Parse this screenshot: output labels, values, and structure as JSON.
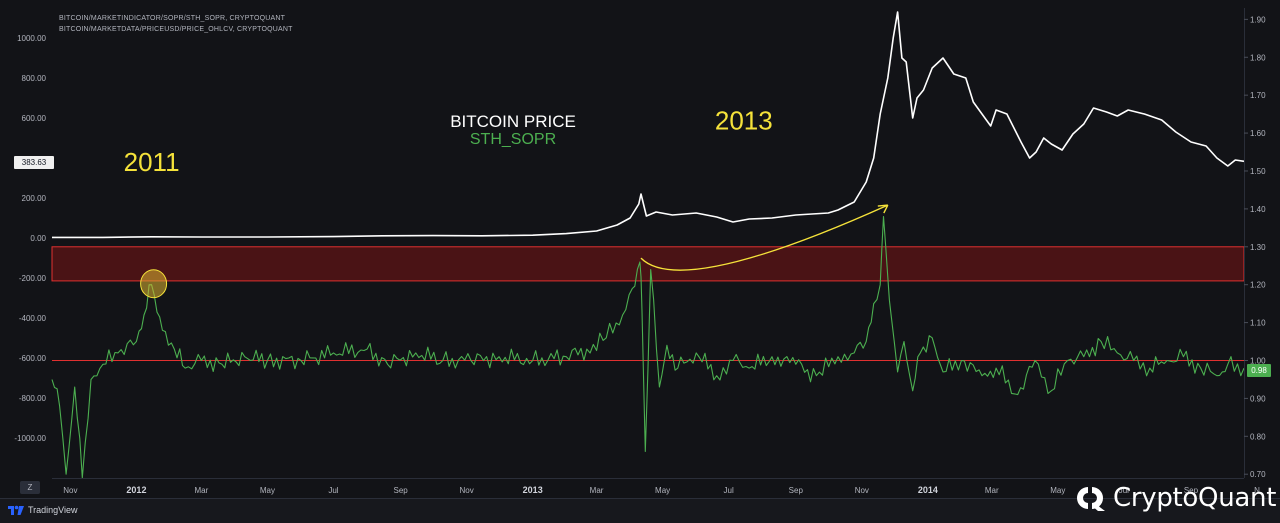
{
  "sources": {
    "line1": "BITCOIN/MARKETINDICATOR/SOPR/STH_SOPR, CRYPTOQUANT",
    "line2": "BITCOIN/MARKETDATA/PRICEUSD/PRICE_OHLCV, CRYPTOQUANT"
  },
  "badges": {
    "price_last": "383.63",
    "sopr_last": "0.98",
    "timezone": "Z"
  },
  "branding": {
    "tradingview": "TradingView",
    "cryptoquant": "CryptoQuant"
  },
  "colors": {
    "background": "#121317",
    "price_line": "#ffffff",
    "sopr_line": "#4caf50",
    "band_fill": "#4a1315",
    "band_edge": "#e03030",
    "level_line": "#e03030",
    "annotation": "#f5e23a",
    "axis_text": "#b2b5be"
  },
  "chart_data": {
    "type": "line",
    "legend": {
      "position": "center",
      "items": [
        "BITCOIN PRICE",
        "STH_SOPR"
      ]
    },
    "left_axis": {
      "ticks": [
        1000,
        800,
        600,
        400,
        200,
        0,
        -200,
        -400,
        -600,
        -800,
        -1000
      ],
      "tick_labels": [
        "1000.00",
        "800.00",
        "600.00",
        "",
        "200.00",
        "0.00",
        "-200.00",
        "-400.00",
        "-600.00",
        "-800.00",
        "-1000.00"
      ],
      "range": [
        -1200,
        1150
      ]
    },
    "right_axis": {
      "ticks": [
        1.9,
        1.8,
        1.7,
        1.6,
        1.5,
        1.4,
        1.3,
        1.2,
        1.1,
        1.0,
        0.9,
        0.8,
        0.7
      ],
      "tick_labels": [
        "1.90",
        "1.80",
        "1.70",
        "1.60",
        "1.50",
        "1.40",
        "1.30",
        "1.20",
        "1.10",
        "1.00",
        "0.90",
        "0.80",
        "0.70"
      ],
      "range": [
        0.69,
        1.93
      ]
    },
    "x_axis": {
      "tick_labels": [
        "Nov",
        "2012",
        "Mar",
        "May",
        "Jul",
        "Sep",
        "Nov",
        "2013",
        "Mar",
        "May",
        "Jul",
        "Sep",
        "Nov",
        "2014",
        "Mar",
        "May",
        "Jul",
        "Sep",
        "N"
      ],
      "bold_labels": [
        "2012",
        "2013",
        "2014"
      ],
      "ticks": [
        "2011-11-01",
        "2012-01-01",
        "2012-03-01",
        "2012-05-01",
        "2012-07-01",
        "2012-09-01",
        "2012-11-01",
        "2013-01-01",
        "2013-03-01",
        "2013-05-01",
        "2013-07-01",
        "2013-09-01",
        "2013-11-01",
        "2014-01-01",
        "2014-03-01",
        "2014-05-01",
        "2014-07-01",
        "2014-09-01",
        "2014-11-01"
      ],
      "range": [
        "2011-10-15",
        "2014-10-20"
      ]
    },
    "series": [
      {
        "name": "BITCOIN PRICE",
        "axis": "left",
        "x": [
          "2011-10-15",
          "2011-12-01",
          "2012-01-15",
          "2012-03-01",
          "2012-05-01",
          "2012-07-01",
          "2012-08-15",
          "2012-10-01",
          "2012-11-15",
          "2013-01-01",
          "2013-02-01",
          "2013-03-01",
          "2013-03-20",
          "2013-04-01",
          "2013-04-09",
          "2013-04-11",
          "2013-04-16",
          "2013-04-25",
          "2013-05-10",
          "2013-06-01",
          "2013-06-20",
          "2013-07-05",
          "2013-07-20",
          "2013-08-10",
          "2013-09-01",
          "2013-10-01",
          "2013-10-10",
          "2013-10-25",
          "2013-11-05",
          "2013-11-12",
          "2013-11-18",
          "2013-11-25",
          "2013-11-30",
          "2013-12-04",
          "2013-12-08",
          "2013-12-12",
          "2013-12-18",
          "2013-12-22",
          "2013-12-28",
          "2014-01-05",
          "2014-01-15",
          "2014-01-25",
          "2014-02-05",
          "2014-02-12",
          "2014-02-20",
          "2014-02-28",
          "2014-03-05",
          "2014-03-15",
          "2014-03-28",
          "2014-04-05",
          "2014-04-11",
          "2014-04-18",
          "2014-04-25",
          "2014-05-05",
          "2014-05-15",
          "2014-05-25",
          "2014-06-03",
          "2014-06-15",
          "2014-06-25",
          "2014-07-05",
          "2014-07-20",
          "2014-08-05",
          "2014-08-18",
          "2014-09-01",
          "2014-09-15",
          "2014-09-25",
          "2014-10-05",
          "2014-10-12",
          "2014-10-20"
        ],
        "y": [
          3,
          3,
          6,
          5,
          5,
          7,
          11,
          12,
          11,
          14,
          22,
          35,
          65,
          100,
          170,
          220,
          110,
          130,
          115,
          125,
          105,
          80,
          95,
          100,
          115,
          125,
          140,
          180,
          280,
          400,
          620,
          800,
          1000,
          1130,
          900,
          880,
          600,
          700,
          740,
          850,
          900,
          820,
          800,
          680,
          620,
          560,
          640,
          620,
          480,
          400,
          430,
          500,
          470,
          440,
          520,
          570,
          650,
          630,
          610,
          640,
          620,
          590,
          530,
          480,
          460,
          400,
          360,
          390,
          383.63
        ]
      },
      {
        "name": "STH_SOPR",
        "axis": "right",
        "x": [
          "2011-10-15",
          "2011-10-22",
          "2011-10-28",
          "2011-11-05",
          "2011-11-12",
          "2011-11-20",
          "2011-12-01",
          "2011-12-15",
          "2012-01-01",
          "2012-01-08",
          "2012-01-15",
          "2012-01-25",
          "2012-02-05",
          "2012-02-15",
          "2012-03-01",
          "2012-03-20",
          "2012-04-10",
          "2012-05-01",
          "2012-06-01",
          "2012-07-01",
          "2012-08-01",
          "2012-08-20",
          "2012-09-15",
          "2012-10-10",
          "2012-11-05",
          "2012-12-01",
          "2013-01-01",
          "2013-02-01",
          "2013-02-20",
          "2013-03-10",
          "2013-03-25",
          "2013-04-03",
          "2013-04-10",
          "2013-04-12",
          "2013-04-15",
          "2013-04-20",
          "2013-04-28",
          "2013-05-05",
          "2013-05-15",
          "2013-06-01",
          "2013-06-20",
          "2013-07-05",
          "2013-07-20",
          "2013-08-10",
          "2013-09-01",
          "2013-09-20",
          "2013-10-10",
          "2013-10-25",
          "2013-11-05",
          "2013-11-12",
          "2013-11-18",
          "2013-11-21",
          "2013-11-25",
          "2013-11-28",
          "2013-12-04",
          "2013-12-10",
          "2013-12-18",
          "2013-12-25",
          "2014-01-05",
          "2014-01-15",
          "2014-02-01",
          "2014-02-20",
          "2014-03-05",
          "2014-03-25",
          "2014-04-10",
          "2014-04-25",
          "2014-05-10",
          "2014-05-25",
          "2014-06-10",
          "2014-06-25",
          "2014-07-10",
          "2014-07-25",
          "2014-08-10",
          "2014-08-25",
          "2014-09-10",
          "2014-09-25",
          "2014-10-05",
          "2014-10-20"
        ],
        "y": [
          0.95,
          0.88,
          0.7,
          0.93,
          0.69,
          0.95,
          0.99,
          1.02,
          1.05,
          1.12,
          1.2,
          1.08,
          1.03,
          0.98,
          1.0,
          0.99,
          1.01,
          1.0,
          1.0,
          1.02,
          1.03,
          0.99,
          1.02,
          1.0,
          1.0,
          1.01,
          1.0,
          1.01,
          1.03,
          1.06,
          1.12,
          1.19,
          1.26,
          1.13,
          0.76,
          1.24,
          0.93,
          1.04,
          0.98,
          1.02,
          0.96,
          1.0,
          0.98,
          1.01,
          0.99,
          0.96,
          1.01,
          1.02,
          1.05,
          1.15,
          1.2,
          1.38,
          1.22,
          1.12,
          0.97,
          1.05,
          0.92,
          1.02,
          1.06,
          0.97,
          1.0,
          0.96,
          0.98,
          0.91,
          1.0,
          0.92,
          1.0,
          1.01,
          1.05,
          1.02,
          1.0,
          0.98,
          1.0,
          1.01,
          0.98,
          0.96,
          0.99,
          0.98
        ]
      }
    ],
    "reference_band": {
      "axis": "right",
      "from": 1.21,
      "to": 1.3
    },
    "reference_line": {
      "axis": "right",
      "value": 1.0
    },
    "annotations": [
      {
        "text": "2011",
        "x": "2012-01-15",
        "y": 1.5
      },
      {
        "text": "2013",
        "x": "2013-07-15",
        "y": 1.61
      }
    ],
    "arrow": {
      "from": {
        "x": "2013-04-11",
        "y": 1.27
      },
      "to": {
        "x": "2013-11-25",
        "y": 1.41
      }
    },
    "circle_marker": {
      "x": "2012-01-15",
      "y": 1.2
    }
  }
}
